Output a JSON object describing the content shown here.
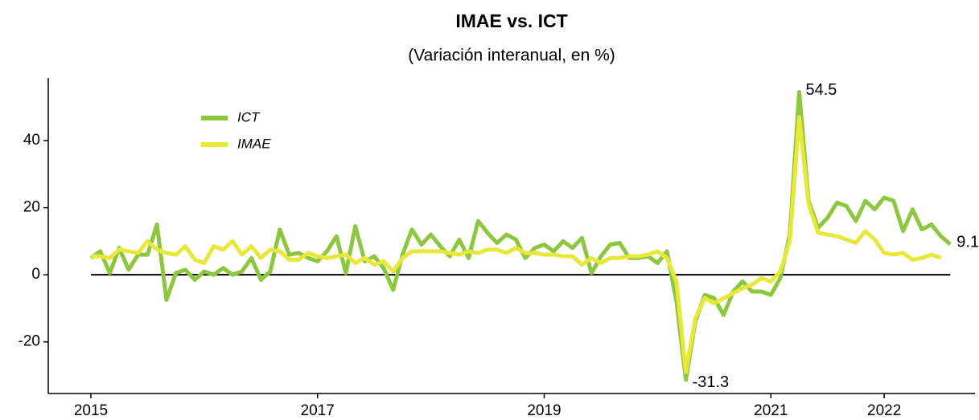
{
  "chart_data": {
    "type": "line",
    "title": "IMAE vs. ICT",
    "subtitle": "(Variación interanual, en %)",
    "x": [
      2015,
      2015.083,
      2015.167,
      2015.25,
      2015.333,
      2015.417,
      2015.5,
      2015.583,
      2015.667,
      2015.75,
      2015.833,
      2015.917,
      2016,
      2016.083,
      2016.167,
      2016.25,
      2016.333,
      2016.417,
      2016.5,
      2016.583,
      2016.667,
      2016.75,
      2016.833,
      2016.917,
      2017,
      2017.083,
      2017.167,
      2017.25,
      2017.333,
      2017.417,
      2017.5,
      2017.583,
      2017.667,
      2017.75,
      2017.833,
      2017.917,
      2018,
      2018.083,
      2018.167,
      2018.25,
      2018.333,
      2018.417,
      2018.5,
      2018.583,
      2018.667,
      2018.75,
      2018.833,
      2018.917,
      2019,
      2019.083,
      2019.167,
      2019.25,
      2019.333,
      2019.417,
      2019.5,
      2019.583,
      2019.667,
      2019.75,
      2019.833,
      2019.917,
      2020,
      2020.083,
      2020.167,
      2020.25,
      2020.333,
      2020.417,
      2020.5,
      2020.583,
      2020.667,
      2020.75,
      2020.833,
      2020.917,
      2021,
      2021.083,
      2021.167,
      2021.25,
      2021.333,
      2021.417,
      2021.5,
      2021.583,
      2021.667,
      2021.75,
      2021.833,
      2021.917,
      2022,
      2022.083,
      2022.167,
      2022.25,
      2022.333,
      2022.417,
      2022.5,
      2022.583
    ],
    "series": [
      {
        "name": "ICT",
        "color": "#8dc63f",
        "values": [
          5,
          7,
          0.5,
          8,
          1.5,
          6,
          6,
          15,
          -7.5,
          0.5,
          1.5,
          -1.5,
          1,
          0,
          2,
          0,
          1,
          5,
          -1.5,
          1,
          13.5,
          6,
          6.5,
          5,
          4,
          7,
          11.5,
          0.5,
          14.5,
          4,
          5.5,
          2,
          -4.5,
          6,
          13.5,
          9,
          12,
          8.5,
          5.5,
          10.5,
          5,
          16,
          12.5,
          9.5,
          12,
          10.5,
          5,
          8,
          9,
          7,
          10,
          8,
          11,
          0.5,
          5.5,
          9,
          9.5,
          5,
          5,
          5.5,
          3.5,
          7,
          -8,
          -31.3,
          -14,
          -6,
          -7,
          -12,
          -5,
          -2,
          -5,
          -5,
          -6,
          -1,
          12,
          54.5,
          22,
          14,
          17,
          21.5,
          20.5,
          16,
          22,
          19.5,
          23,
          22,
          13,
          19.5,
          13.5,
          15,
          11.5,
          9.1
        ],
        "value_labels": [
          null,
          null,
          null,
          null,
          null,
          null,
          null,
          null,
          null,
          null,
          null,
          null,
          null,
          null,
          null,
          null,
          null,
          null,
          null,
          null,
          null,
          null,
          null,
          null,
          null,
          null,
          null,
          null,
          null,
          null,
          null,
          null,
          null,
          null,
          null,
          null,
          null,
          null,
          null,
          null,
          null,
          null,
          null,
          null,
          null,
          null,
          null,
          null,
          null,
          null,
          null,
          null,
          null,
          null,
          null,
          null,
          null,
          null,
          null,
          null,
          null,
          null,
          null,
          "-31.3",
          null,
          null,
          null,
          null,
          null,
          null,
          null,
          null,
          null,
          null,
          null,
          "54.5",
          null,
          null,
          null,
          null,
          null,
          null,
          null,
          null,
          null,
          null,
          null,
          null,
          null,
          null,
          null,
          "9.1"
        ]
      },
      {
        "name": "IMAE",
        "color": "#e8e83a",
        "values": [
          5.5,
          5.5,
          5,
          7.5,
          7,
          6.5,
          10,
          7.5,
          6.5,
          6,
          8.5,
          4.5,
          3.5,
          8.5,
          7.5,
          10,
          6,
          8.5,
          5,
          7.5,
          7,
          4.5,
          4.5,
          6.5,
          5.5,
          5,
          5.5,
          6,
          3.5,
          5,
          3,
          4,
          1,
          5,
          7,
          7,
          7,
          7,
          6.5,
          6,
          7,
          6.5,
          7.5,
          7.5,
          6.5,
          8,
          6.5,
          6.5,
          6,
          6,
          5.5,
          5.5,
          3,
          5,
          3.5,
          5,
          5,
          5.5,
          5.5,
          6,
          7,
          5,
          -2,
          -29,
          -13,
          -7,
          -8.5,
          -7,
          -5.5,
          -4,
          -3,
          -1,
          -2,
          1,
          10,
          47,
          21,
          12.5,
          12,
          11.5,
          10.5,
          9.5,
          13,
          10.5,
          6.5,
          6,
          6.5,
          4.5,
          5,
          6,
          5,
          null
        ]
      }
    ],
    "xlim": [
      2014.624,
      2022.801
    ],
    "xticks": [
      2015,
      2017,
      2019,
      2021,
      2022
    ],
    "ylim": [
      -35.4,
      58.7
    ],
    "yticks": [
      -20,
      0,
      20,
      40
    ],
    "hline": 0,
    "grid": false,
    "legend": "top-left"
  }
}
